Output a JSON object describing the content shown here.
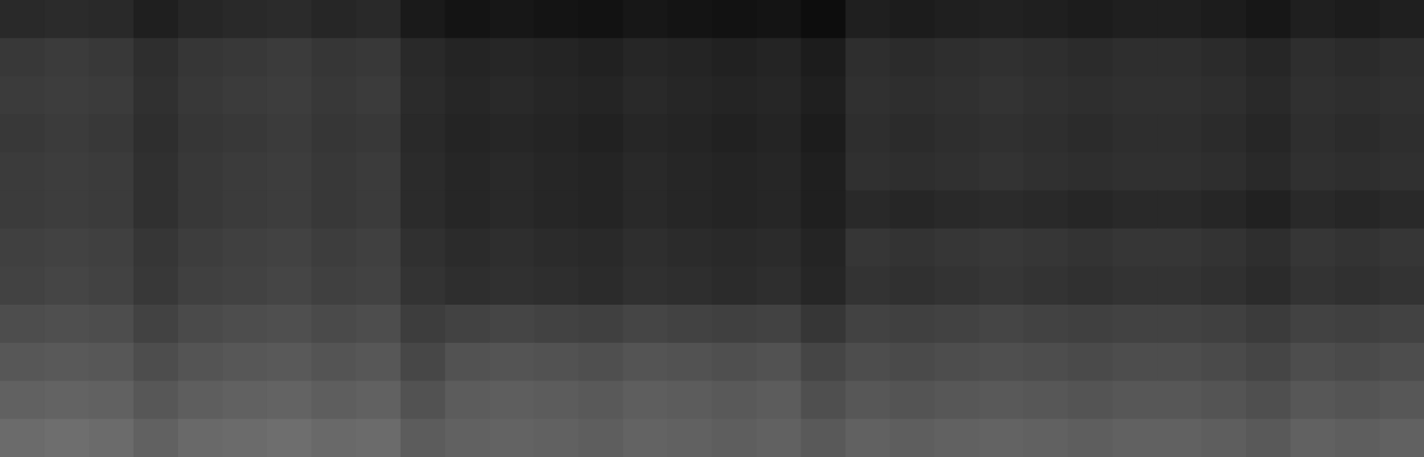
{
  "chart_data": {
    "type": "heatmap",
    "tick_labels": false,
    "color": "#ffffff",
    "zlim": [
      0,
      100
    ],
    "cells": [
      [
        16,
        17,
        16,
        12,
        15,
        16,
        17,
        15,
        16,
        10,
        8,
        9,
        8,
        7,
        9,
        8,
        7,
        8,
        5,
        12,
        11,
        12,
        13,
        12,
        11,
        12,
        12,
        11,
        9,
        12,
        11,
        12
      ],
      [
        22,
        23,
        22,
        18,
        21,
        22,
        23,
        21,
        22,
        16,
        14,
        15,
        14,
        13,
        15,
        14,
        13,
        14,
        11,
        18,
        17,
        18,
        19,
        18,
        17,
        18,
        18,
        17,
        15,
        18,
        17,
        18
      ],
      [
        23,
        24,
        23,
        19,
        22,
        23,
        24,
        22,
        23,
        17,
        15,
        16,
        15,
        14,
        16,
        15,
        14,
        15,
        12,
        19,
        18,
        19,
        20,
        19,
        18,
        19,
        19,
        18,
        16,
        19,
        18,
        19
      ],
      [
        22,
        23,
        22,
        18,
        21,
        22,
        23,
        21,
        22,
        16,
        14,
        15,
        14,
        13,
        15,
        14,
        13,
        14,
        11,
        18,
        17,
        18,
        19,
        18,
        17,
        18,
        18,
        17,
        15,
        18,
        17,
        18
      ],
      [
        23,
        24,
        23,
        19,
        22,
        23,
        24,
        22,
        23,
        17,
        15,
        16,
        15,
        14,
        16,
        15,
        14,
        15,
        12,
        19,
        18,
        19,
        20,
        19,
        18,
        19,
        19,
        18,
        16,
        19,
        18,
        19
      ],
      [
        23,
        24,
        23,
        19,
        22,
        23,
        24,
        22,
        23,
        17,
        15,
        16,
        15,
        14,
        16,
        15,
        14,
        15,
        12,
        16,
        15,
        16,
        17,
        16,
        15,
        16,
        16,
        15,
        13,
        16,
        15,
        16
      ],
      [
        25,
        26,
        25,
        21,
        24,
        25,
        26,
        24,
        25,
        19,
        17,
        18,
        17,
        16,
        18,
        17,
        16,
        17,
        14,
        21,
        20,
        21,
        22,
        21,
        20,
        21,
        21,
        20,
        18,
        21,
        20,
        21
      ],
      [
        26,
        27,
        26,
        22,
        25,
        26,
        27,
        25,
        26,
        20,
        18,
        19,
        18,
        17,
        19,
        18,
        17,
        18,
        15,
        20,
        19,
        20,
        21,
        20,
        19,
        20,
        20,
        19,
        17,
        20,
        19,
        20
      ],
      [
        30,
        31,
        30,
        26,
        29,
        30,
        31,
        29,
        30,
        24,
        26,
        27,
        26,
        25,
        27,
        26,
        25,
        26,
        21,
        26,
        25,
        26,
        27,
        26,
        25,
        26,
        26,
        25,
        23,
        26,
        25,
        26
      ],
      [
        34,
        35,
        34,
        30,
        33,
        34,
        35,
        33,
        34,
        28,
        32,
        33,
        32,
        31,
        33,
        32,
        31,
        32,
        27,
        30,
        29,
        30,
        31,
        30,
        29,
        30,
        30,
        29,
        27,
        30,
        29,
        30
      ],
      [
        38,
        39,
        38,
        34,
        37,
        38,
        39,
        37,
        38,
        32,
        36,
        37,
        36,
        35,
        37,
        36,
        35,
        36,
        31,
        34,
        33,
        34,
        35,
        34,
        33,
        34,
        34,
        33,
        31,
        34,
        33,
        34
      ],
      [
        42,
        43,
        42,
        38,
        41,
        42,
        43,
        41,
        42,
        36,
        38,
        39,
        38,
        37,
        39,
        38,
        37,
        38,
        35,
        38,
        37,
        38,
        39,
        38,
        37,
        38,
        38,
        37,
        35,
        38,
        37,
        38
      ]
    ]
  }
}
